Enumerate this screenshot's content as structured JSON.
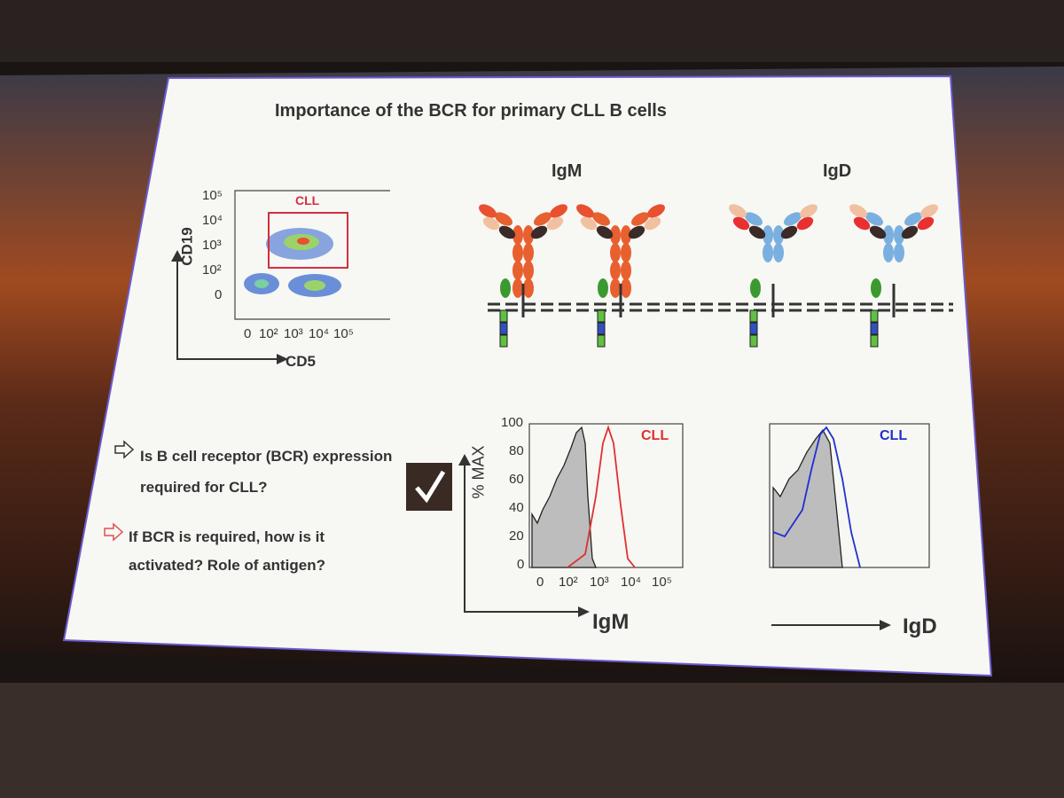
{
  "title": "Importance of the BCR for primary CLL B cells",
  "flow_plot": {
    "gate_label": "CLL",
    "y_axis_label": "CD19",
    "x_axis_label": "CD5",
    "y_ticks": [
      "10⁵",
      "10⁴",
      "10³",
      "10²",
      "0"
    ],
    "x_ticks": [
      "0",
      "10²",
      "10³",
      "10⁴",
      "10⁵"
    ]
  },
  "diagram": {
    "igm_label": "IgM",
    "igd_label": "IgD"
  },
  "questions": [
    "Is B cell receptor (BCR) expression required for CLL?",
    "If BCR is required, how is it activated? Role of antigen?"
  ],
  "histogram_igm": {
    "y_axis_label": "% MAX",
    "y_ticks": [
      "100",
      "80",
      "60",
      "40",
      "20",
      "0"
    ],
    "x_ticks": [
      "0",
      "10²",
      "10³",
      "10⁴",
      "10⁵"
    ],
    "legend": "CLL",
    "x_axis_label": "IgM"
  },
  "histogram_igd": {
    "legend": "CLL",
    "x_axis_label": "IgD"
  }
}
